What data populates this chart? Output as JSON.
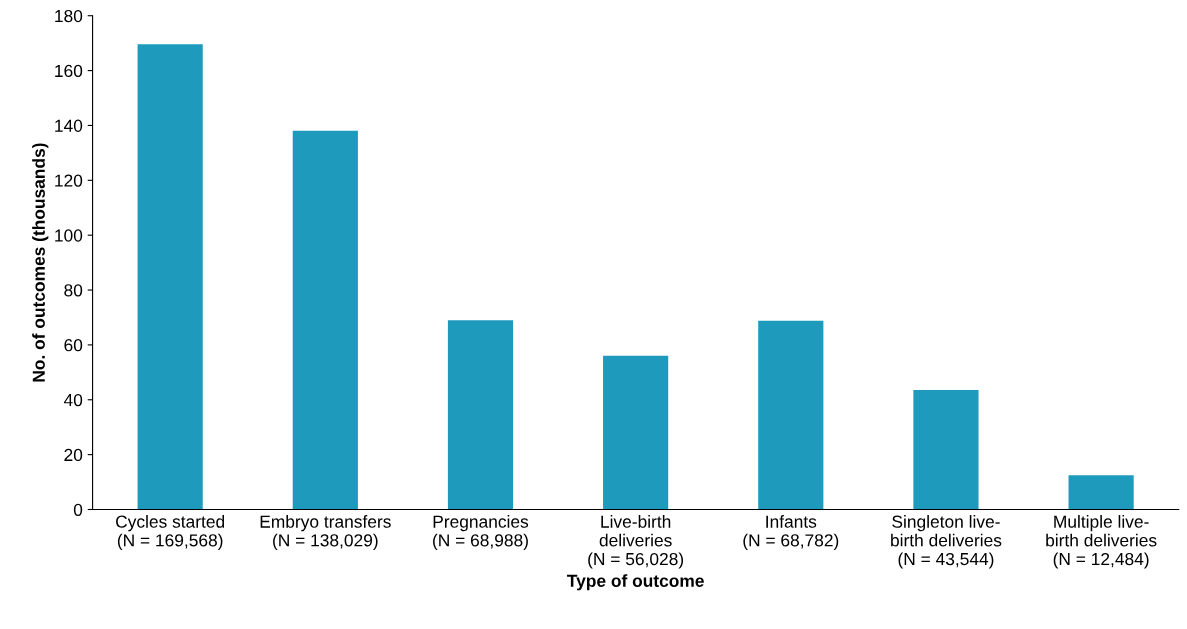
{
  "chart_data": {
    "type": "bar",
    "xlabel": "Type of outcome",
    "ylabel": "No. of outcomes (thousands)",
    "categories": [
      "Cycles started\n(N = 169,568)",
      "Embryo transfers\n(N = 138,029)",
      "Pregnancies\n(N = 68,988)",
      "Live-birth\ndeliveries\n(N = 56,028)",
      "Infants\n(N = 68,782)",
      "Singleton live-\nbirth deliveries\n(N = 43,544)",
      "Multiple live-\nbirth deliveries\n(N = 12,484)"
    ],
    "values": [
      169.568,
      138.029,
      68.988,
      56.028,
      68.782,
      43.544,
      12.484
    ],
    "color": "#1e9abd",
    "ylim": [
      0,
      180
    ],
    "yticks": [
      0,
      20,
      40,
      60,
      80,
      100,
      120,
      140,
      160,
      180
    ],
    "grid": false
  }
}
